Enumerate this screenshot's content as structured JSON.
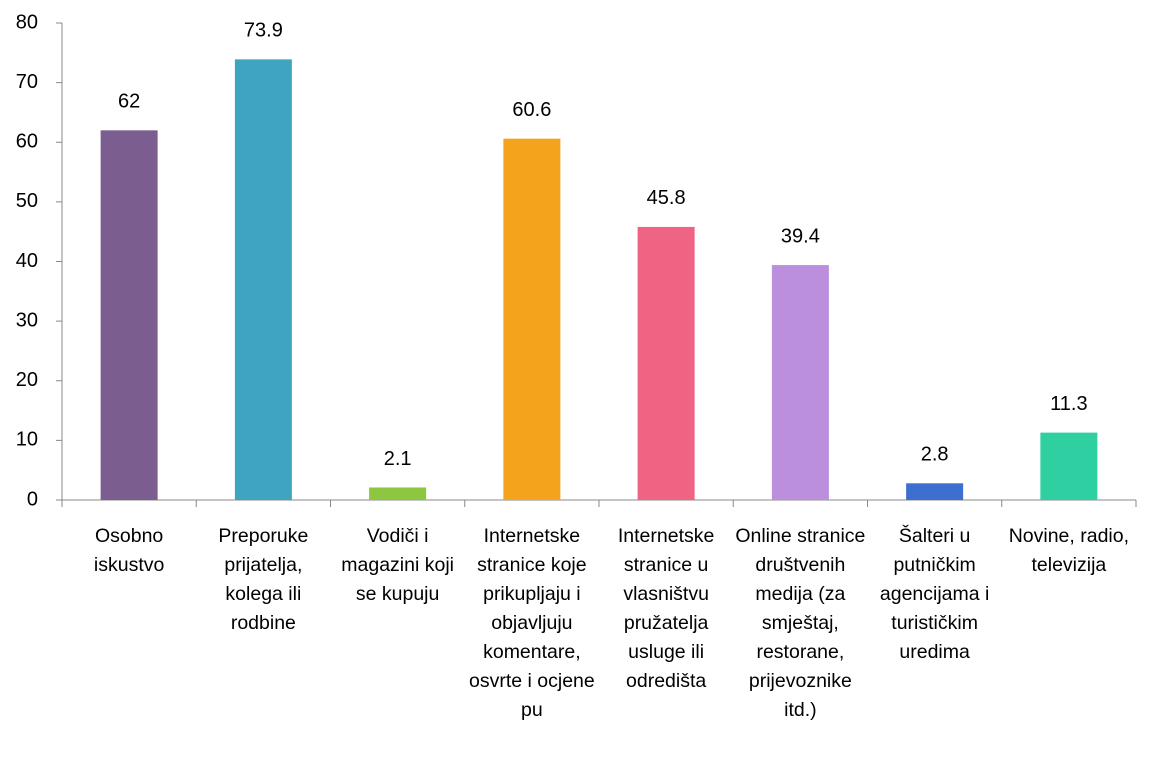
{
  "chart_data": {
    "type": "bar",
    "categories": [
      "Osobno iskustvo",
      "Preporuke prijatelja, kolega ili rodbine",
      "Vodiči i magazini koji se kupuju",
      "Internetske stranice koje prikupljaju i objavljuju komentare, osvrte i ocjene pu",
      "Internetske stranice u vlasništvu pružatelja usluge ili odredišta",
      "Online stranice društvenih medija (za smještaj, restorane, prijevoznike itd.)",
      "Šalteri u putničkim agencijama i turističkim uredima",
      "Novine, radio, televizija"
    ],
    "values": [
      62,
      73.9,
      2.1,
      60.6,
      45.8,
      39.4,
      2.8,
      11.3
    ],
    "colors": [
      "#7b5e8f",
      "#3fa3c2",
      "#8dc63f",
      "#f4a31c",
      "#ef6483",
      "#bb8fdd",
      "#3c6fcf",
      "#2ecfa0"
    ],
    "ylim": [
      0,
      80
    ],
    "yticks": [
      0,
      10,
      20,
      30,
      40,
      50,
      60,
      70,
      80
    ],
    "grid": false
  }
}
